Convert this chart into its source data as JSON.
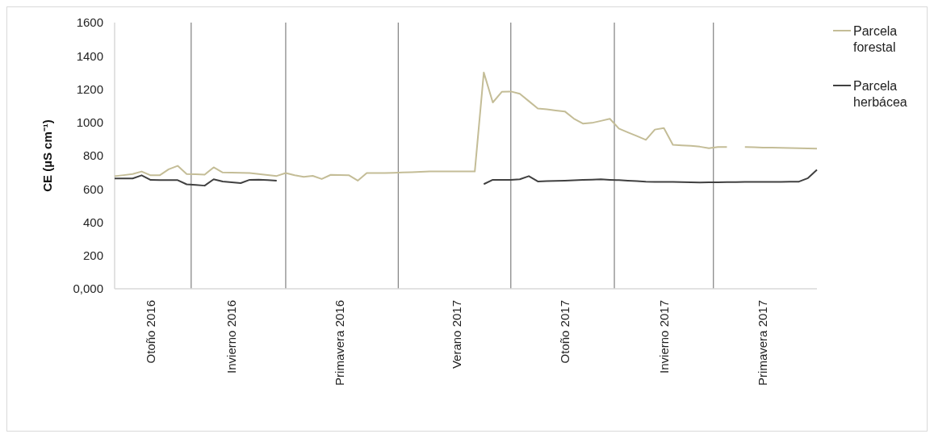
{
  "chart_data": {
    "type": "line",
    "ylabel": "CE (µS cm⁻¹)",
    "categories": [
      null,
      null,
      null,
      null,
      "Otoño 2016",
      null,
      null,
      null,
      null,
      null,
      null,
      null,
      null,
      "Invierno 2016",
      null,
      null,
      null,
      null,
      null,
      null,
      null,
      null,
      null,
      null,
      null,
      "Primavera 2016",
      null,
      null,
      null,
      null,
      null,
      null,
      null,
      null,
      null,
      null,
      null,
      null,
      "Verano 2017",
      null,
      null,
      null,
      null,
      null,
      null,
      null,
      null,
      null,
      null,
      null,
      "Otoño 2017",
      null,
      null,
      null,
      null,
      null,
      null,
      null,
      null,
      null,
      null,
      "Invierno 2017",
      null,
      null,
      null,
      null,
      null,
      null,
      null,
      null,
      null,
      null,
      "Primavera 2017",
      null,
      null,
      null,
      null,
      null,
      null
    ],
    "ylim": [
      0,
      1600
    ],
    "yticks": [
      {
        "value": 0,
        "label": "0,000"
      },
      200,
      400,
      600,
      800,
      1000,
      1200,
      1400,
      1600
    ],
    "legend": "top right",
    "series": [
      {
        "name": "Parcela forestal",
        "color": "#c4bd97",
        "values": [
          677,
          683,
          690,
          705,
          682,
          682,
          718,
          739,
          690,
          688,
          686,
          730,
          699,
          698,
          697,
          696,
          690,
          684,
          678,
          696,
          682,
          673,
          679,
          660,
          685,
          684,
          683,
          650,
          696,
          696,
          696,
          697,
          699,
          701,
          703,
          705,
          705,
          705,
          705,
          705,
          705,
          1300,
          1120,
          1184,
          1186,
          1172,
          1128,
          1084,
          1079,
          1072,
          1066,
          1023,
          993,
          997,
          1009,
          1022,
          963,
          940,
          918,
          895,
          957,
          966,
          865,
          862,
          859,
          854,
          845,
          852,
          852,
          null,
          852,
          851,
          849,
          848,
          847,
          846,
          845,
          844,
          843
        ]
      },
      {
        "name": "Parcela herbácea",
        "color": "#404040",
        "values": [
          663,
          663,
          663,
          682,
          654,
          653,
          653,
          653,
          628,
          624,
          620,
          658,
          645,
          640,
          635,
          655,
          656,
          653,
          650,
          null,
          null,
          null,
          null,
          null,
          null,
          null,
          null,
          null,
          null,
          null,
          null,
          null,
          null,
          null,
          null,
          null,
          null,
          null,
          null,
          null,
          null,
          629,
          655,
          654,
          655,
          658,
          677,
          645,
          647,
          649,
          650,
          652,
          654,
          656,
          658,
          655,
          653,
          650,
          647,
          644,
          643,
          643,
          642,
          641,
          640,
          639,
          640,
          640,
          641,
          641,
          642,
          642,
          642,
          643,
          643,
          644,
          644,
          665,
          715
        ]
      }
    ]
  }
}
